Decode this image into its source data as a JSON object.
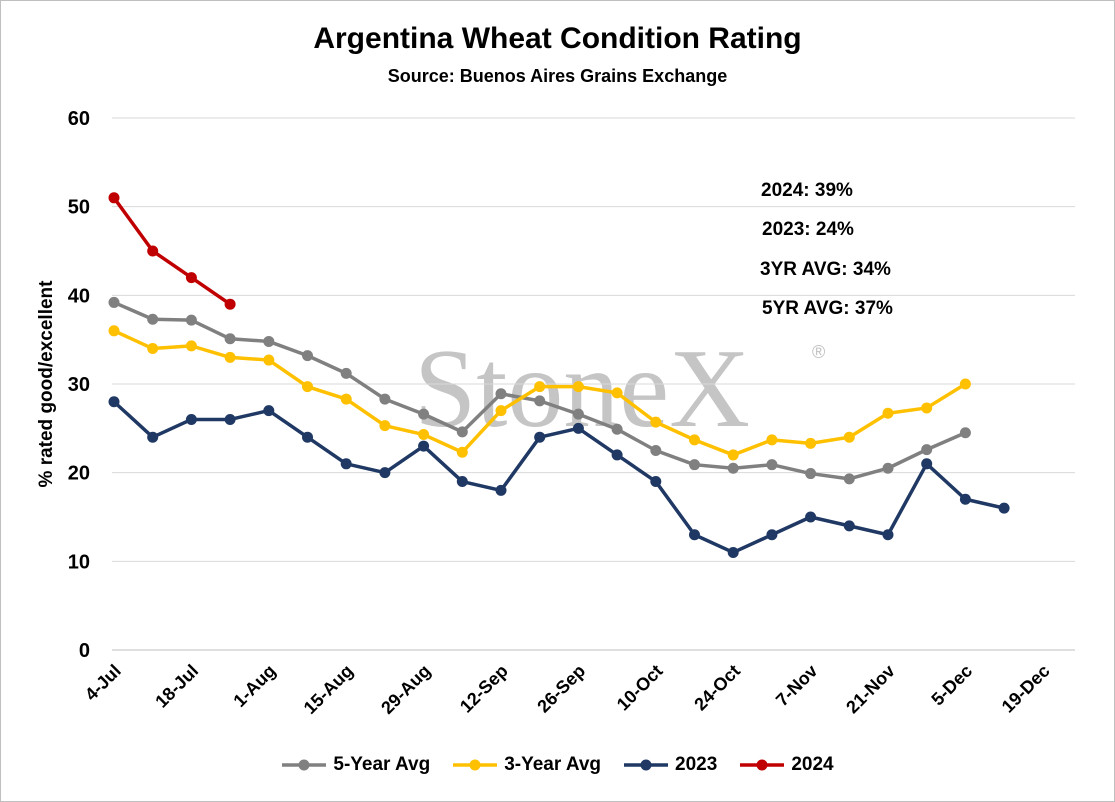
{
  "chart_data": {
    "type": "line",
    "title": "Argentina Wheat Condition Rating",
    "subtitle": "Source: Buenos Aires Grains Exchange",
    "ylabel": "% rated good/excellent",
    "xlabel": "",
    "ylim": [
      0,
      60
    ],
    "yticks": [
      0,
      10,
      20,
      30,
      40,
      50,
      60
    ],
    "xticks": [
      "4-Jul",
      "18-Jul",
      "1-Aug",
      "15-Aug",
      "29-Aug",
      "12-Sep",
      "26-Sep",
      "10-Oct",
      "24-Oct",
      "7-Nov",
      "21-Nov",
      "5-Dec",
      "19-Dec"
    ],
    "grid": true,
    "legend": "bottom",
    "series": [
      {
        "name": "5-Year Avg",
        "color": "#808080",
        "values": [
          39.2,
          37.3,
          37.2,
          35.1,
          34.8,
          33.2,
          31.2,
          28.3,
          26.6,
          24.6,
          28.9,
          28.1,
          26.6,
          24.9,
          22.5,
          20.9,
          20.5,
          20.9,
          19.9,
          19.3,
          20.5,
          22.6,
          24.5
        ]
      },
      {
        "name": "3-Year Avg",
        "color": "#ffc000",
        "values": [
          36.0,
          34.0,
          34.3,
          33.0,
          32.7,
          29.7,
          28.3,
          25.3,
          24.3,
          22.3,
          27.0,
          29.7,
          29.7,
          29.0,
          25.7,
          23.7,
          22.0,
          23.7,
          23.3,
          24.0,
          26.7,
          27.3,
          30.0
        ]
      },
      {
        "name": "2023",
        "color": "#1f3864",
        "values": [
          28,
          24,
          26,
          26,
          27,
          24,
          21,
          20,
          23,
          19,
          18,
          24,
          25,
          22,
          19,
          13,
          11,
          13,
          15,
          14,
          13,
          21,
          17,
          16
        ]
      },
      {
        "name": "2024",
        "color": "#c00000",
        "values": [
          51,
          45,
          42,
          39
        ]
      }
    ],
    "annotations": [
      "2024: 39%",
      "2023: 24%",
      "3YR AVG: 34%",
      "5YR AVG: 37%"
    ],
    "watermark": "StoneX"
  }
}
